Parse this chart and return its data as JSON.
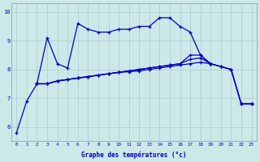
{
  "xlabel": "Graphe des températures (°c)",
  "background_color": "#cce8e8",
  "grid_color": "#aacccc",
  "line_color": "#0000bb",
  "x": [
    0,
    1,
    2,
    3,
    4,
    5,
    6,
    7,
    8,
    9,
    10,
    11,
    12,
    13,
    14,
    15,
    16,
    17,
    18,
    19,
    20,
    21,
    22,
    23
  ],
  "s1": [
    5.8,
    6.9,
    7.5,
    9.1,
    8.2,
    8.05,
    9.6,
    9.4,
    9.3,
    9.3,
    9.4,
    9.4,
    9.5,
    9.5,
    9.8,
    9.8,
    9.5,
    9.3,
    8.5,
    8.2,
    null,
    null,
    6.8,
    6.8
  ],
  "s2": [
    null,
    null,
    7.5,
    7.5,
    7.6,
    7.65,
    7.7,
    7.75,
    7.8,
    7.85,
    7.9,
    7.95,
    8.0,
    8.05,
    8.1,
    8.15,
    8.2,
    8.5,
    8.5,
    8.2,
    8.1,
    8.0,
    6.8,
    6.8
  ],
  "s3": [
    null,
    null,
    7.5,
    7.5,
    7.6,
    7.65,
    7.7,
    7.75,
    7.8,
    7.85,
    7.9,
    7.95,
    8.0,
    8.05,
    8.1,
    8.15,
    8.2,
    8.35,
    8.4,
    8.2,
    8.1,
    8.0,
    6.8,
    6.8
  ],
  "s4": [
    null,
    null,
    7.5,
    7.5,
    7.6,
    7.65,
    7.7,
    7.75,
    7.8,
    7.85,
    7.9,
    7.92,
    7.95,
    8.0,
    8.05,
    8.1,
    8.15,
    8.2,
    8.25,
    8.2,
    8.1,
    8.0,
    6.8,
    6.8
  ],
  "ylim": [
    5.5,
    10.3
  ],
  "xlim": [
    -0.5,
    23.5
  ],
  "yticks": [
    6,
    7,
    8,
    9,
    10
  ]
}
